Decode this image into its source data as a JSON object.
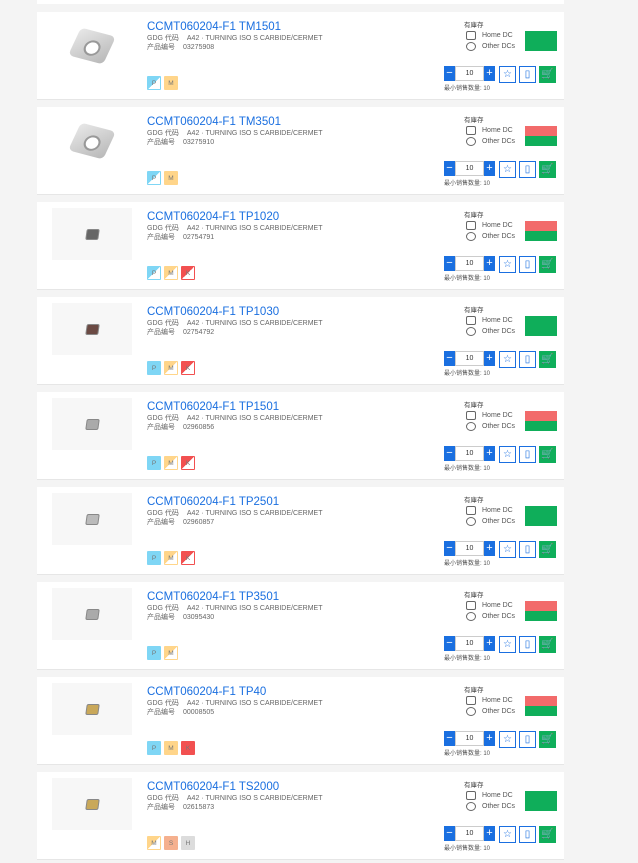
{
  "labels": {
    "gdg": "GDG 代码",
    "gdg_val": "A42 · TURNING ISO S CARBIDE/CERMET",
    "pn": "产品编号",
    "stock": "有庫存",
    "home_dc": "Home DC",
    "other_dcs": "Other DCs",
    "min_qty": "最小销售数量: 10",
    "minus": "−",
    "plus": "+",
    "favorite_icon": "star-icon",
    "datasheet_icon": "document-icon",
    "cart_icon": "cart-icon"
  },
  "colors": {
    "accent": "#1a6fe0",
    "in_stock": "#0fae5a",
    "low_stock": "#f26b6b",
    "P": "#7fd6f5",
    "M": "#ffd58a",
    "K": "#f25050",
    "S": "#f5b08e",
    "H": "#dcdcdc"
  },
  "products": [
    {
      "name": "CCMT060204-F1 TM1501",
      "pn": "03275908",
      "qty": "10",
      "home": "green",
      "other": "green",
      "image": "large",
      "badges": [
        {
          "l": "P",
          "half": true
        },
        {
          "l": "M",
          "half": false
        }
      ]
    },
    {
      "name": "CCMT060204-F1 TM3501",
      "pn": "03275910",
      "qty": "10",
      "home": "red",
      "other": "green",
      "image": "large",
      "badges": [
        {
          "l": "P",
          "half": true
        },
        {
          "l": "M",
          "half": false
        }
      ]
    },
    {
      "name": "CCMT060204-F1 TP1020",
      "pn": "02754791",
      "qty": "10",
      "home": "red",
      "other": "green",
      "image": "#666",
      "badges": [
        {
          "l": "P",
          "half": true
        },
        {
          "l": "M",
          "half": true
        },
        {
          "l": "K",
          "half": true
        }
      ]
    },
    {
      "name": "CCMT060204-F1 TP1030",
      "pn": "02754792",
      "qty": "10",
      "home": "green",
      "other": "green",
      "image": "#6b4a44",
      "badges": [
        {
          "l": "P",
          "half": false
        },
        {
          "l": "M",
          "half": true
        },
        {
          "l": "K",
          "half": true
        }
      ]
    },
    {
      "name": "CCMT060204-F1 TP1501",
      "pn": "02960856",
      "qty": "10",
      "home": "red",
      "other": "green",
      "image": "#aaa",
      "badges": [
        {
          "l": "P",
          "half": false
        },
        {
          "l": "M",
          "half": true
        },
        {
          "l": "K",
          "half": true
        }
      ]
    },
    {
      "name": "CCMT060204-F1 TP2501",
      "pn": "02960857",
      "qty": "10",
      "home": "green",
      "other": "green",
      "image": "#bbb",
      "badges": [
        {
          "l": "P",
          "half": false
        },
        {
          "l": "M",
          "half": true
        },
        {
          "l": "K",
          "half": true
        }
      ]
    },
    {
      "name": "CCMT060204-F1 TP3501",
      "pn": "03095430",
      "qty": "10",
      "home": "red",
      "other": "green",
      "image": "#aaa",
      "badges": [
        {
          "l": "P",
          "half": false
        },
        {
          "l": "M",
          "half": true
        }
      ]
    },
    {
      "name": "CCMT060204-F1 TP40",
      "pn": "00008505",
      "qty": "10",
      "home": "red",
      "other": "green",
      "image": "#c9a85a",
      "badges": [
        {
          "l": "P",
          "half": false
        },
        {
          "l": "M",
          "half": false
        },
        {
          "l": "K",
          "half": false
        }
      ]
    },
    {
      "name": "CCMT060204-F1 TS2000",
      "pn": "02615873",
      "qty": "10",
      "home": "green",
      "other": "green",
      "image": "#c9a85a",
      "badges": [
        {
          "l": "M",
          "half": true
        },
        {
          "l": "S",
          "half": false
        },
        {
          "l": "H",
          "half": false
        }
      ]
    }
  ]
}
